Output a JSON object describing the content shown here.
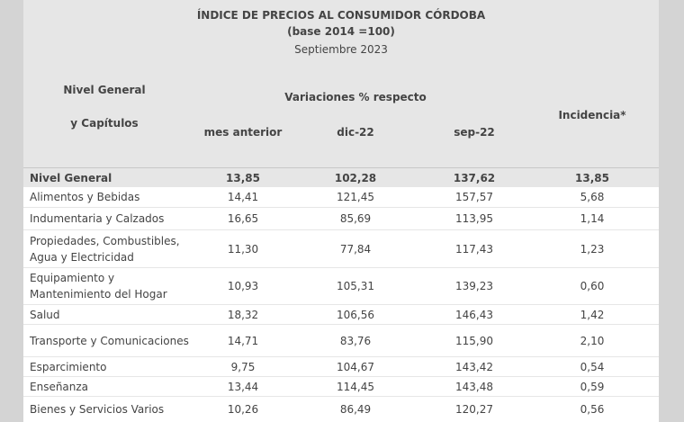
{
  "header": {
    "title": "ÍNDICE DE PRECIOS AL CONSUMIDOR CÓRDOBA (base 2014 =100)",
    "subtitle": "Septiembre 2023"
  },
  "table": {
    "row_header_lines": [
      "Nivel General",
      "y Capítulos"
    ],
    "group_header": "Variaciones % respecto",
    "columns": [
      "mes anterior",
      "dic-22",
      "sep-22",
      "Incidencia*"
    ],
    "rows": [
      [
        "Nivel General",
        "13,85",
        "102,28",
        "137,62",
        "13,85"
      ],
      [
        "Alimentos y Bebidas",
        "14,41",
        "121,45",
        "157,57",
        "5,68"
      ],
      [
        "Indumentaria y Calzados",
        "16,65",
        "85,69",
        "113,95",
        "1,14"
      ],
      [
        "Propiedades, Combustibles,\nAgua y Electricidad",
        "11,30",
        "77,84",
        "117,43",
        "1,23"
      ],
      [
        "Equipamiento y\nMantenimiento del Hogar",
        "10,93",
        "105,31",
        "139,23",
        "0,60"
      ],
      [
        "Salud",
        "18,32",
        "106,56",
        "146,43",
        "1,42"
      ],
      [
        "Transporte y Comunicaciones",
        "14,71",
        "83,76",
        "115,90",
        "2,10"
      ],
      [
        "Esparcimiento",
        "9,75",
        "104,67",
        "143,42",
        "0,54"
      ],
      [
        "Enseñanza",
        "13,44",
        "114,45",
        "143,48",
        "0,59"
      ],
      [
        "Bienes y Servicios Varios",
        "10,26",
        "86,49",
        "120,27",
        "0,56"
      ]
    ]
  }
}
